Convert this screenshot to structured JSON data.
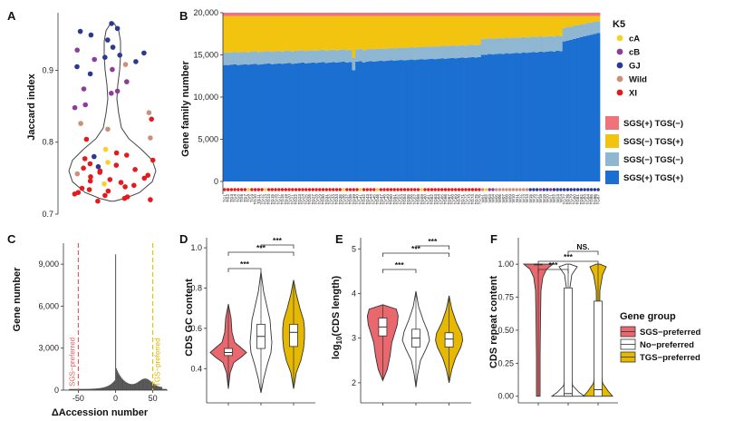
{
  "chart_data": [
    {
      "panel": "A",
      "type": "scatter",
      "ylabel": "Jaccard index",
      "ylim": [
        0.7,
        0.98
      ],
      "yticks": [
        "0.7",
        "0.8",
        "0.9"
      ],
      "points": [
        {
          "y": 0.965,
          "g": "GJ"
        },
        {
          "y": 0.958,
          "g": "GJ"
        },
        {
          "y": 0.954,
          "g": "GJ"
        },
        {
          "y": 0.949,
          "g": "GJ"
        },
        {
          "y": 0.942,
          "g": "GJ"
        },
        {
          "y": 0.932,
          "g": "GJ"
        },
        {
          "y": 0.928,
          "g": "cB"
        },
        {
          "y": 0.924,
          "g": "GJ"
        },
        {
          "y": 0.921,
          "g": "GJ"
        },
        {
          "y": 0.918,
          "g": "GJ"
        },
        {
          "y": 0.915,
          "g": "cB"
        },
        {
          "y": 0.912,
          "g": "GJ"
        },
        {
          "y": 0.908,
          "g": "Wild"
        },
        {
          "y": 0.905,
          "g": "GJ"
        },
        {
          "y": 0.901,
          "g": "cB"
        },
        {
          "y": 0.895,
          "g": "GJ"
        },
        {
          "y": 0.884,
          "g": "cB"
        },
        {
          "y": 0.874,
          "g": "cB"
        },
        {
          "y": 0.871,
          "g": "cB"
        },
        {
          "y": 0.868,
          "g": "cB"
        },
        {
          "y": 0.852,
          "g": "cB"
        },
        {
          "y": 0.848,
          "g": "cB"
        },
        {
          "y": 0.841,
          "g": "Wild"
        },
        {
          "y": 0.832,
          "g": "XI"
        },
        {
          "y": 0.826,
          "g": "Wild"
        },
        {
          "y": 0.818,
          "g": "Wild"
        },
        {
          "y": 0.806,
          "g": "Wild"
        },
        {
          "y": 0.804,
          "g": "XI"
        },
        {
          "y": 0.79,
          "g": "cA"
        },
        {
          "y": 0.785,
          "g": "XI"
        },
        {
          "y": 0.782,
          "g": "XI"
        },
        {
          "y": 0.78,
          "g": "GJ"
        },
        {
          "y": 0.777,
          "g": "XI"
        },
        {
          "y": 0.775,
          "g": "XI"
        },
        {
          "y": 0.772,
          "g": "cA"
        },
        {
          "y": 0.77,
          "g": "XI"
        },
        {
          "y": 0.768,
          "g": "XI"
        },
        {
          "y": 0.766,
          "g": "GJ"
        },
        {
          "y": 0.764,
          "g": "XI"
        },
        {
          "y": 0.762,
          "g": "XI"
        },
        {
          "y": 0.76,
          "g": "XI"
        },
        {
          "y": 0.758,
          "g": "XI"
        },
        {
          "y": 0.756,
          "g": "Wild"
        },
        {
          "y": 0.754,
          "g": "XI"
        },
        {
          "y": 0.752,
          "g": "XI"
        },
        {
          "y": 0.75,
          "g": "XI"
        },
        {
          "y": 0.748,
          "g": "XI"
        },
        {
          "y": 0.746,
          "g": "XI"
        },
        {
          "y": 0.744,
          "g": "XI"
        },
        {
          "y": 0.742,
          "g": "cA"
        },
        {
          "y": 0.74,
          "g": "XI"
        },
        {
          "y": 0.738,
          "g": "XI"
        },
        {
          "y": 0.736,
          "g": "XI"
        },
        {
          "y": 0.734,
          "g": "XI"
        },
        {
          "y": 0.732,
          "g": "XI"
        },
        {
          "y": 0.73,
          "g": "XI"
        },
        {
          "y": 0.728,
          "g": "XI"
        },
        {
          "y": 0.726,
          "g": "XI"
        },
        {
          "y": 0.724,
          "g": "XI"
        },
        {
          "y": 0.722,
          "g": "XI"
        },
        {
          "y": 0.72,
          "g": "XI"
        },
        {
          "y": 0.718,
          "g": "XI"
        }
      ]
    },
    {
      "panel": "B",
      "type": "bar",
      "stacked": true,
      "ylabel": "Gene family number",
      "ylim": [
        0,
        20000
      ],
      "yticks": [
        "0",
        "5,000",
        "10,000",
        "15,000",
        "20,000"
      ],
      "n_samples": 111,
      "total": 20000,
      "series_order": [
        "SGS(+) TGS(+)",
        "SGS(−) TGS(−)",
        "SGS(−) TGS(+)",
        "SGS(+) TGS(−)"
      ],
      "categories": [
        "TG1",
        "TG2",
        "TG3",
        "TG4",
        "TG5",
        "TG6",
        "TG7",
        "TG8",
        "TG9",
        "TG10",
        "TG11",
        "TG12",
        "TG13",
        "TG14",
        "TG15",
        "TG16",
        "TG17",
        "TG18",
        "TG19",
        "TG20",
        "TG21",
        "TG22",
        "TG23",
        "TG24",
        "TG25",
        "TG26",
        "TG27",
        "TG28",
        "TG29",
        "TG30",
        "TG31",
        "TG32",
        "TG33",
        "TG34",
        "TG35",
        "TG36",
        "TG37",
        "TG38",
        "TG39",
        "TG40",
        "TG41",
        "TG42",
        "TG43",
        "TG44",
        "TG45",
        "TG46",
        "TG47",
        "TG48",
        "TG49",
        "TG50",
        "TG51",
        "TG52",
        "TG53",
        "TG54",
        "TG55",
        "TG56",
        "TG57",
        "TG58",
        "TG59",
        "TG60",
        "TG61",
        "TG62",
        "TG63",
        "TG64",
        "TG65",
        "TG66",
        "TG67",
        "TG68",
        "TG69",
        "TG70",
        "TG71",
        "TG72",
        "TG73",
        "TG74",
        "TG75",
        "TG76",
        "W01",
        "W02",
        "W03",
        "W04",
        "W05",
        "W06",
        "W07",
        "W08",
        "W09",
        "W10",
        "W11",
        "W12",
        "W13",
        "W14",
        "W15",
        "W16",
        "W17",
        "W18",
        "W19",
        "W20",
        "W21",
        "W22",
        "W23",
        "W24",
        "TG77",
        "TG78",
        "TG79",
        "TG80",
        "TG81",
        "TG82",
        "TG83",
        "TG84",
        "TG85",
        "TG86",
        "TG87"
      ],
      "pp_series": [
        13800,
        13800,
        13850,
        13900,
        13800,
        13850,
        13900,
        13850,
        13900,
        13950,
        13850,
        13900,
        13950,
        14000,
        13900,
        13950,
        14000,
        13950,
        14000,
        14050,
        13950,
        14000,
        14050,
        14100,
        14000,
        14050,
        14100,
        14050,
        14100,
        14150,
        14050,
        14100,
        14150,
        14100,
        14150,
        14200,
        14100,
        14150,
        13200,
        14200,
        14250,
        14100,
        14200,
        14250,
        14200,
        14250,
        14300,
        14250,
        14300,
        14350,
        14300,
        14350,
        14400,
        14350,
        14400,
        14450,
        14400,
        14450,
        14500,
        14450,
        14500,
        14550,
        14500,
        14550,
        14600,
        14550,
        14600,
        14650,
        14600,
        14650,
        14700,
        14650,
        14700,
        14750,
        14700,
        14750,
        15000,
        15000,
        15100,
        15050,
        15100,
        15150,
        15100,
        15200,
        15150,
        15200,
        15250,
        15200,
        15300,
        15250,
        15300,
        15350,
        15300,
        15400,
        15350,
        15400,
        15450,
        15400,
        15500,
        15450,
        16600,
        16700,
        16800,
        16900,
        17000,
        17100,
        17200,
        17300,
        17400,
        17500,
        17600
      ],
      "ls_series": [
        1500,
        1480,
        1460,
        1470,
        1490,
        1480,
        1470,
        1460,
        1480,
        1490,
        1500,
        1480,
        1470,
        1460,
        1480,
        1490,
        1470,
        1460,
        1480,
        1470,
        1460,
        1480,
        1470,
        1460,
        1470,
        1480,
        1460,
        1470,
        1480,
        1460,
        1470,
        1480,
        1460,
        1470,
        1460,
        1480,
        1470,
        1460,
        1470,
        1460,
        1480,
        1470,
        1460,
        1470,
        1480,
        1460,
        1470,
        1460,
        1480,
        1470,
        1460,
        1470,
        1480,
        1460,
        1470,
        1460,
        1480,
        1470,
        1460,
        1470,
        1480,
        1460,
        1470,
        1460,
        1480,
        1470,
        1460,
        1470,
        1480,
        1460,
        1470,
        1460,
        1480,
        1470,
        1460,
        1470,
        1900,
        1880,
        1860,
        1870,
        1850,
        1860,
        1840,
        1850,
        1830,
        1840,
        1820,
        1830,
        1810,
        1820,
        1800,
        1810,
        1790,
        1800,
        1780,
        1790,
        1770,
        1780,
        1760,
        1770,
        1600,
        1580,
        1560,
        1540,
        1520,
        1500,
        1480,
        1460,
        1440,
        1420,
        1400
      ],
      "pm_series": [
        400,
        400,
        400,
        400,
        400,
        400,
        400,
        400,
        400,
        400,
        400,
        400,
        400,
        400,
        400,
        400,
        400,
        400,
        400,
        400,
        400,
        400,
        400,
        400,
        400,
        400,
        400,
        400,
        400,
        400,
        400,
        400,
        400,
        400,
        400,
        400,
        400,
        400,
        400,
        400,
        400,
        400,
        400,
        400,
        400,
        400,
        400,
        400,
        400,
        400,
        400,
        400,
        400,
        400,
        400,
        400,
        400,
        400,
        400,
        400,
        400,
        400,
        400,
        400,
        400,
        400,
        400,
        400,
        400,
        400,
        400,
        400,
        400,
        400,
        400,
        400,
        400,
        400,
        400,
        400,
        400,
        400,
        400,
        400,
        400,
        400,
        400,
        400,
        400,
        400,
        400,
        400,
        400,
        400,
        400,
        400,
        400,
        400,
        400,
        400,
        400,
        400,
        400,
        400,
        400,
        400,
        400,
        400,
        400,
        400,
        400
      ],
      "strip_groups": [
        "XI",
        "XI",
        "XI",
        "XI",
        "XI",
        "XI",
        "XI",
        "cA",
        "XI",
        "XI",
        "XI",
        "XI",
        "cA",
        "XI",
        "XI",
        "XI",
        "XI",
        "XI",
        "XI",
        "XI",
        "XI",
        "XI",
        "XI",
        "XI",
        "XI",
        "XI",
        "XI",
        "XI",
        "XI",
        "XI",
        "XI",
        "XI",
        "XI",
        "XI",
        "XI",
        "cA",
        "XI",
        "XI",
        "XI",
        "XI",
        "cA",
        "XI",
        "XI",
        "XI",
        "XI",
        "cA",
        "XI",
        "XI",
        "XI",
        "XI",
        "XI",
        "XI",
        "XI",
        "XI",
        "XI",
        "XI",
        "XI",
        "XI",
        "cA",
        "XI",
        "XI",
        "XI",
        "XI",
        "XI",
        "XI",
        "XI",
        "XI",
        "XI",
        "XI",
        "XI",
        "XI",
        "XI",
        "XI",
        "XI",
        "XI",
        "XI",
        "Wild",
        "cA",
        "cB",
        "cB",
        "Wild",
        "Wild",
        "Wild",
        "Wild",
        "Wild",
        "Wild",
        "Wild",
        "Wild",
        "Wild",
        "Wild",
        "GJ",
        "GJ",
        "GJ",
        "cB",
        "GJ",
        "GJ",
        "cB",
        "GJ",
        "GJ",
        "GJ",
        "GJ",
        "GJ",
        "GJ",
        "GJ",
        "GJ",
        "GJ",
        "GJ",
        "GJ",
        "GJ",
        "GJ",
        "GJ"
      ]
    },
    {
      "panel": "C",
      "type": "bar",
      "xlabel": "ΔAccession number",
      "ylabel": "Gene number",
      "xlim": [
        -70,
        70
      ],
      "ylim": [
        0,
        10500
      ],
      "xticks": [
        "-50",
        "0",
        "50"
      ],
      "yticks": [
        "0",
        "3,000",
        "6,000",
        "9,000"
      ],
      "peak_value": 9700,
      "annotations": [
        "SGS−preferred",
        "TGS−preferred"
      ],
      "threshold_lines": [
        -50,
        50
      ]
    },
    {
      "panel": "D",
      "type": "violin",
      "ylabel": "CDS GC content",
      "ylim": [
        0.23,
        1.05
      ],
      "yticks": [
        "0.4",
        "0.6",
        "0.8",
        "1.0"
      ],
      "groups": [
        {
          "name": "SGS−preferred",
          "median": 0.48,
          "q1": 0.465,
          "q3": 0.5,
          "min": 0.3,
          "max": 0.72
        },
        {
          "name": "No−preferred",
          "median": 0.56,
          "q1": 0.5,
          "q3": 0.62,
          "min": 0.28,
          "max": 0.88
        },
        {
          "name": "TGS−preferred",
          "median": 0.58,
          "q1": 0.51,
          "q3": 0.62,
          "min": 0.3,
          "max": 0.84
        }
      ],
      "significance": [
        "***",
        "***",
        "***"
      ]
    },
    {
      "panel": "E",
      "type": "violin",
      "ylabel": "log10(CDS length)",
      "ylim": [
        1.55,
        5.25
      ],
      "yticks": [
        "2",
        "3",
        "4",
        "5"
      ],
      "groups": [
        {
          "name": "SGS−preferred",
          "median": 3.25,
          "q1": 3.05,
          "q3": 3.45,
          "min": 2.05,
          "max": 3.75
        },
        {
          "name": "No−preferred",
          "median": 3.0,
          "q1": 2.8,
          "q3": 3.2,
          "min": 1.9,
          "max": 4.05
        },
        {
          "name": "TGS−preferred",
          "median": 2.98,
          "q1": 2.8,
          "q3": 3.12,
          "min": 2.0,
          "max": 3.95
        }
      ],
      "significance": [
        "***",
        "***",
        "***"
      ]
    },
    {
      "panel": "F",
      "type": "violin",
      "ylabel": "CDS repeat content",
      "ylim": [
        -0.05,
        1.2
      ],
      "yticks": [
        "0.00",
        "0.25",
        "0.50",
        "0.75",
        "1.00"
      ],
      "groups": [
        {
          "name": "SGS−preferred",
          "median": 1.0,
          "q1": 1.0,
          "q3": 1.0,
          "min": 0.0,
          "max": 1.0
        },
        {
          "name": "No−preferred",
          "median": 0.02,
          "q1": 0.0,
          "q3": 0.82,
          "min": 0.0,
          "max": 1.0
        },
        {
          "name": "TGS−preferred",
          "median": 0.05,
          "q1": 0.0,
          "q3": 0.72,
          "min": 0.0,
          "max": 1.0
        }
      ],
      "significance": [
        "***",
        "***",
        "NS."
      ]
    }
  ],
  "labels": {
    "panelA": "A",
    "panelB": "B",
    "panelC": "C",
    "panelD": "D",
    "panelE": "E",
    "panelF": "F",
    "ylabA": "Jaccard index",
    "ylabB": "Gene family number",
    "ylabC": "Gene number",
    "xlabC": "ΔAccession number",
    "ylabD": "CDS GC content",
    "ylabE": "log10(CDS length)",
    "ylabF": "CDS repeat content",
    "sgsPref": "SGS−preferred",
    "tgsPref": "TGS−preferred",
    "legendK5Title": "K5",
    "legendGroupTitle": "Gene group",
    "ns": "NS.",
    "sig": "***"
  },
  "k5_legend": [
    {
      "label": "cA",
      "color": "#f5d226"
    },
    {
      "label": "cB",
      "color": "#8e3c9a"
    },
    {
      "label": "GJ",
      "color": "#2b3990"
    },
    {
      "label": "Wild",
      "color": "#c9917c"
    },
    {
      "label": "XI",
      "color": "#e41a1c"
    }
  ],
  "stack_legend": [
    {
      "label": "SGS(+) TGS(−)",
      "color": "#f0737a"
    },
    {
      "label": "SGS(−) TGS(+)",
      "color": "#f2c40f"
    },
    {
      "label": "SGS(−) TGS(−)",
      "color": "#8fb7d1"
    },
    {
      "label": "SGS(+) TGS(+)",
      "color": "#1b6fd1"
    }
  ],
  "group_legend": [
    {
      "label": "SGS−preferred",
      "color": "#e8686e"
    },
    {
      "label": "No−preferred",
      "color": "#ffffff"
    },
    {
      "label": "TGS−preferred",
      "color": "#e6b800"
    }
  ]
}
